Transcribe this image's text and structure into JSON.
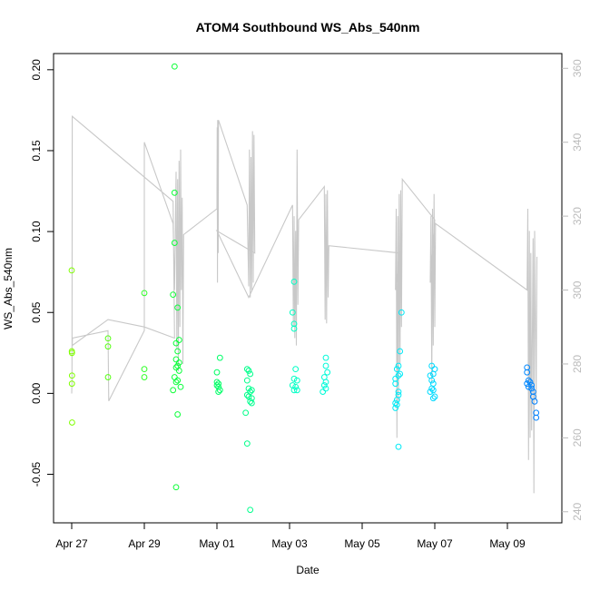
{
  "chart_data": {
    "type": "scatter",
    "title": "ATOM4 Southbound WS_Abs_540nm",
    "xlabel": "Date",
    "ylabel": "WS_Abs_540nm",
    "x_type": "date",
    "xlim": [
      "2018-04-26T12:00",
      "2018-05-10T12:00"
    ],
    "ylim": [
      -0.08,
      0.21
    ],
    "x_ticks": [
      {
        "date": "2018-04-27",
        "label": "Apr 27"
      },
      {
        "date": "2018-04-29",
        "label": "Apr 29"
      },
      {
        "date": "2018-05-01",
        "label": "May 01"
      },
      {
        "date": "2018-05-03",
        "label": "May 03"
      },
      {
        "date": "2018-05-05",
        "label": "May 05"
      },
      {
        "date": "2018-05-07",
        "label": "May 07"
      },
      {
        "date": "2018-05-09",
        "label": "May 09"
      }
    ],
    "y_ticks": [
      "-0.05",
      "0.00",
      "0.05",
      "0.10",
      "0.15",
      "0.20"
    ],
    "y2": {
      "ylim": [
        237,
        364
      ],
      "ticks": [
        "240",
        "260",
        "280",
        "300",
        "320",
        "340",
        "360"
      ],
      "color": "#bbbbbb"
    },
    "grid": false,
    "legend": "none",
    "series": [
      {
        "kind": "points",
        "marker": "open-circle",
        "color_scale": [
          "#7fff00",
          "#00ff40",
          "#00ffd0",
          "#00e5ff",
          "#0080ff"
        ],
        "points": [
          [
            "2018-04-27T00:00",
            0.076
          ],
          [
            "2018-04-27T00:05",
            0.026
          ],
          [
            "2018-04-27T00:10",
            0.025
          ],
          [
            "2018-04-27T00:12",
            0.011
          ],
          [
            "2018-04-27T00:08",
            0.006
          ],
          [
            "2018-04-27T00:15",
            -0.018
          ],
          [
            "2018-04-28T00:00",
            0.034
          ],
          [
            "2018-04-28T00:00",
            0.029
          ],
          [
            "2018-04-28T00:00",
            0.01
          ],
          [
            "2018-04-29T00:00",
            0.062
          ],
          [
            "2018-04-29T00:00",
            0.015
          ],
          [
            "2018-04-29T00:00",
            0.01
          ],
          [
            "2018-04-29T20:00",
            0.202
          ],
          [
            "2018-04-29T20:00",
            0.124
          ],
          [
            "2018-04-29T20:00",
            0.093
          ],
          [
            "2018-04-29T19:00",
            0.061
          ],
          [
            "2018-04-29T22:00",
            0.053
          ],
          [
            "2018-04-29T23:00",
            0.033
          ],
          [
            "2018-04-29T21:00",
            0.031
          ],
          [
            "2018-04-29T22:00",
            0.026
          ],
          [
            "2018-04-29T21:00",
            0.021
          ],
          [
            "2018-04-29T23:00",
            0.019
          ],
          [
            "2018-04-29T22:00",
            0.017
          ],
          [
            "2018-04-29T21:00",
            0.016
          ],
          [
            "2018-04-29T23:00",
            0.014
          ],
          [
            "2018-04-29T20:00",
            0.01
          ],
          [
            "2018-04-29T22:00",
            0.008
          ],
          [
            "2018-04-29T21:00",
            0.007
          ],
          [
            "2018-04-30T00:00",
            0.004
          ],
          [
            "2018-04-29T19:00",
            0.002
          ],
          [
            "2018-04-29T22:00",
            -0.013
          ],
          [
            "2018-04-29T21:00",
            -0.058
          ],
          [
            "2018-05-01T02:00",
            0.022
          ],
          [
            "2018-05-01T00:00",
            0.013
          ],
          [
            "2018-05-01T00:00",
            0.007
          ],
          [
            "2018-05-01T01:00",
            0.006
          ],
          [
            "2018-05-01T00:00",
            0.005
          ],
          [
            "2018-05-01T01:00",
            0.004
          ],
          [
            "2018-05-01T02:00",
            0.002
          ],
          [
            "2018-05-01T01:00",
            0.001
          ],
          [
            "2018-05-01T20:00",
            0.015
          ],
          [
            "2018-05-01T21:00",
            0.014
          ],
          [
            "2018-05-01T22:00",
            0.012
          ],
          [
            "2018-05-01T20:00",
            0.008
          ],
          [
            "2018-05-01T21:00",
            0.003
          ],
          [
            "2018-05-01T23:00",
            0.002
          ],
          [
            "2018-05-01T22:00",
            0.001
          ],
          [
            "2018-05-01T20:00",
            -0.001
          ],
          [
            "2018-05-01T21:00",
            -0.002
          ],
          [
            "2018-05-01T23:00",
            -0.003
          ],
          [
            "2018-05-01T22:00",
            -0.005
          ],
          [
            "2018-05-01T23:00",
            -0.006
          ],
          [
            "2018-05-01T19:00",
            -0.012
          ],
          [
            "2018-05-01T20:00",
            -0.031
          ],
          [
            "2018-05-01T22:00",
            -0.072
          ],
          [
            "2018-05-03T03:00",
            0.069
          ],
          [
            "2018-05-03T02:00",
            0.05
          ],
          [
            "2018-05-03T03:00",
            0.043
          ],
          [
            "2018-05-03T03:00",
            0.04
          ],
          [
            "2018-05-03T04:00",
            0.015
          ],
          [
            "2018-05-03T03:00",
            0.009
          ],
          [
            "2018-05-03T05:00",
            0.008
          ],
          [
            "2018-05-03T02:00",
            0.005
          ],
          [
            "2018-05-03T04:00",
            0.004
          ],
          [
            "2018-05-03T03:00",
            0.002
          ],
          [
            "2018-05-03T05:00",
            0.002
          ],
          [
            "2018-05-04T00:00",
            0.022
          ],
          [
            "2018-05-04T00:00",
            0.017
          ],
          [
            "2018-05-04T01:00",
            0.013
          ],
          [
            "2018-05-03T23:00",
            0.01
          ],
          [
            "2018-05-04T00:00",
            0.007
          ],
          [
            "2018-05-03T23:00",
            0.005
          ],
          [
            "2018-05-04T00:00",
            0.003
          ],
          [
            "2018-05-03T22:00",
            0.001
          ],
          [
            "2018-05-06T02:00",
            0.05
          ],
          [
            "2018-05-06T01:00",
            0.026
          ],
          [
            "2018-05-06T00:00",
            0.017
          ],
          [
            "2018-05-05T23:00",
            0.015
          ],
          [
            "2018-05-06T01:00",
            0.012
          ],
          [
            "2018-05-06T00:00",
            0.011
          ],
          [
            "2018-05-05T22:00",
            0.009
          ],
          [
            "2018-05-05T22:00",
            0.006
          ],
          [
            "2018-05-06T00:00",
            0.001
          ],
          [
            "2018-05-06T00:00",
            -0.001
          ],
          [
            "2018-05-05T23:00",
            -0.004
          ],
          [
            "2018-05-05T22:00",
            -0.006
          ],
          [
            "2018-05-05T23:00",
            -0.007
          ],
          [
            "2018-05-05T22:00",
            -0.009
          ],
          [
            "2018-05-06T00:00",
            -0.033
          ],
          [
            "2018-05-06T22:00",
            0.017
          ],
          [
            "2018-05-07T00:00",
            0.015
          ],
          [
            "2018-05-06T23:00",
            0.012
          ],
          [
            "2018-05-06T21:00",
            0.011
          ],
          [
            "2018-05-06T22:00",
            0.008
          ],
          [
            "2018-05-06T23:00",
            0.006
          ],
          [
            "2018-05-06T22:00",
            0.003
          ],
          [
            "2018-05-06T23:00",
            0.002
          ],
          [
            "2018-05-06T21:00",
            0.001
          ],
          [
            "2018-05-07T00:00",
            -0.002
          ],
          [
            "2018-05-06T23:00",
            -0.003
          ],
          [
            "2018-05-09T13:00",
            0.016
          ],
          [
            "2018-05-09T13:00",
            0.013
          ],
          [
            "2018-05-09T14:00",
            0.008
          ],
          [
            "2018-05-09T13:00",
            0.006
          ],
          [
            "2018-05-09T15:00",
            0.007
          ],
          [
            "2018-05-09T16:00",
            0.005
          ],
          [
            "2018-05-09T14:00",
            0.004
          ],
          [
            "2018-05-09T16:00",
            0.003
          ],
          [
            "2018-05-09T17:00",
            0.001
          ],
          [
            "2018-05-09T17:00",
            -0.002
          ],
          [
            "2018-05-09T18:00",
            -0.005
          ],
          [
            "2018-05-09T19:00",
            -0.012
          ],
          [
            "2018-05-09T19:00",
            -0.015
          ]
        ]
      },
      {
        "kind": "line",
        "axis": "right",
        "color": "#c8c8c8",
        "points": [
          [
            "2018-04-27T00:00",
            272
          ],
          [
            "2018-04-27T00:10",
            275
          ],
          [
            "2018-04-27T00:20",
            347
          ],
          [
            "2018-04-29T19:00",
            324
          ],
          [
            "2018-04-29T20:00",
            287
          ],
          [
            "2018-04-29T00:00",
            290
          ],
          [
            "2018-04-28T00:00",
            292
          ],
          [
            "2018-04-27T00:20",
            285
          ],
          [
            "2018-04-27T00:30",
            287
          ],
          [
            "2018-04-28T00:00",
            289
          ],
          [
            "2018-04-28T00:30",
            270
          ],
          [
            "2018-04-29T00:00",
            289
          ],
          [
            "2018-04-29T00:00",
            340
          ],
          [
            "2018-04-29T19:00",
            318
          ],
          [
            "2018-04-29T20:00",
            300
          ],
          [
            "2018-04-29T21:00",
            332
          ],
          [
            "2018-04-29T21:30",
            284
          ],
          [
            "2018-04-29T22:00",
            330
          ],
          [
            "2018-04-29T22:30",
            278
          ],
          [
            "2018-04-29T23:00",
            335
          ],
          [
            "2018-04-29T23:30",
            290
          ],
          [
            "2018-04-30T00:00",
            338
          ],
          [
            "2018-04-30T00:30",
            300
          ],
          [
            "2018-04-30T01:00",
            325
          ],
          [
            "2018-04-30T01:30",
            280
          ],
          [
            "2018-04-30T02:00",
            315
          ],
          [
            "2018-05-01T00:00",
            322
          ],
          [
            "2018-05-01T00:10",
            344
          ],
          [
            "2018-05-01T00:20",
            302
          ],
          [
            "2018-05-01T00:30",
            346
          ],
          [
            "2018-05-01T00:40",
            316
          ],
          [
            "2018-05-01T00:50",
            310
          ],
          [
            "2018-05-01T01:00",
            346
          ],
          [
            "2018-05-01T20:00",
            323
          ],
          [
            "2018-05-01T21:00",
            301
          ],
          [
            "2018-05-01T21:30",
            338
          ],
          [
            "2018-05-01T22:00",
            298
          ],
          [
            "2018-05-01T22:30",
            336
          ],
          [
            "2018-05-01T23:00",
            300
          ],
          [
            "2018-05-01T23:30",
            343
          ],
          [
            "2018-05-02T00:00",
            302
          ],
          [
            "2018-05-02T00:30",
            342
          ],
          [
            "2018-05-02T01:00",
            310
          ],
          [
            "2018-05-01T00:00",
            316
          ],
          [
            "2018-05-01T21:00",
            298
          ],
          [
            "2018-05-03T02:00",
            323
          ],
          [
            "2018-05-03T02:30",
            290
          ],
          [
            "2018-05-03T03:00",
            320
          ],
          [
            "2018-05-03T03:30",
            287
          ],
          [
            "2018-05-03T04:00",
            316
          ],
          [
            "2018-05-03T04:30",
            285
          ],
          [
            "2018-05-03T05:00",
            338
          ],
          [
            "2018-05-03T05:30",
            296
          ],
          [
            "2018-05-03T06:00",
            319
          ],
          [
            "2018-05-03T23:00",
            328
          ],
          [
            "2018-05-03T23:30",
            292
          ],
          [
            "2018-05-04T00:00",
            326
          ],
          [
            "2018-05-04T00:30",
            291
          ],
          [
            "2018-05-04T01:00",
            327
          ],
          [
            "2018-05-04T01:30",
            298
          ],
          [
            "2018-05-04T02:00",
            312
          ],
          [
            "2018-05-06T01:00",
            310
          ],
          [
            "2018-05-05T22:00",
            300
          ],
          [
            "2018-05-05T22:30",
            322
          ],
          [
            "2018-05-05T23:00",
            260
          ],
          [
            "2018-05-05T23:30",
            320
          ],
          [
            "2018-05-06T00:00",
            270
          ],
          [
            "2018-05-06T00:30",
            326
          ],
          [
            "2018-05-06T01:00",
            280
          ],
          [
            "2018-05-06T01:30",
            327
          ],
          [
            "2018-05-06T02:00",
            290
          ],
          [
            "2018-05-06T02:30",
            330
          ],
          [
            "2018-05-07T00:00",
            319
          ],
          [
            "2018-05-06T21:00",
            302
          ],
          [
            "2018-05-06T21:30",
            320
          ],
          [
            "2018-05-06T22:00",
            275
          ],
          [
            "2018-05-06T22:30",
            322
          ],
          [
            "2018-05-06T23:00",
            285
          ],
          [
            "2018-05-06T23:30",
            326
          ],
          [
            "2018-05-07T00:00",
            290
          ],
          [
            "2018-05-07T00:30",
            318
          ],
          [
            "2018-05-09T13:00",
            300
          ],
          [
            "2018-05-09T13:30",
            322
          ],
          [
            "2018-05-09T14:00",
            254
          ],
          [
            "2018-05-09T14:30",
            316
          ],
          [
            "2018-05-09T15:00",
            260
          ],
          [
            "2018-05-09T15:30",
            310
          ],
          [
            "2018-05-09T16:00",
            262
          ],
          [
            "2018-05-09T17:00",
            314
          ],
          [
            "2018-05-09T17:30",
            245
          ],
          [
            "2018-05-09T18:00",
            316
          ],
          [
            "2018-05-09T19:00",
            270
          ],
          [
            "2018-05-09T19:30",
            309
          ]
        ]
      }
    ]
  }
}
